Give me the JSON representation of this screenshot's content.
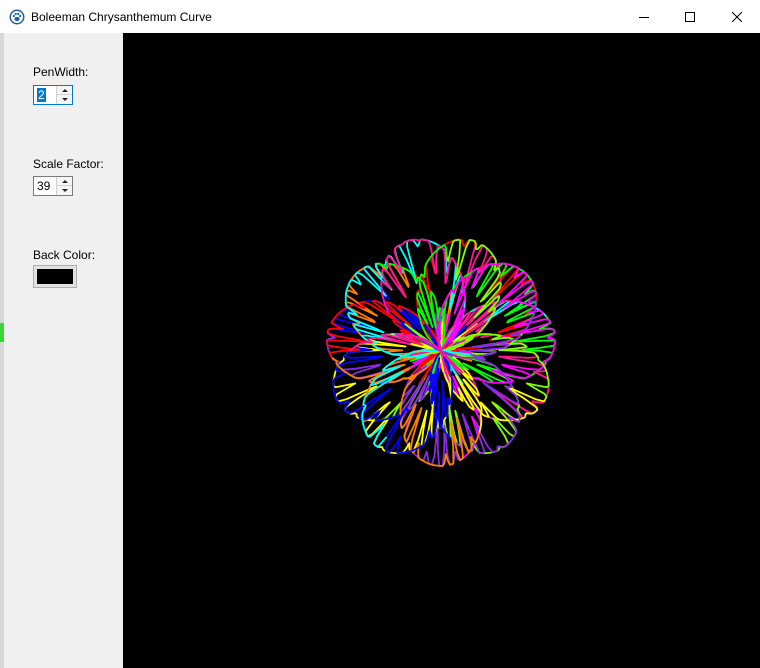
{
  "window": {
    "title": "Boleeman Chrysanthemum Curve",
    "app_icon": "paw-icon",
    "controls": [
      "minimize-icon",
      "maximize-icon",
      "close-icon"
    ]
  },
  "panel": {
    "pen_width": {
      "label": "PenWidth:",
      "value": "2"
    },
    "scale_factor": {
      "label": "Scale Factor:",
      "value": "39"
    },
    "back_color": {
      "label": "Back Color:",
      "color": "#000000"
    }
  },
  "canvas": {
    "background": "#000000",
    "palette": [
      "#ff0000",
      "#ff7f00",
      "#ffff00",
      "#7fff00",
      "#00ff00",
      "#00ffff",
      "#0000ff",
      "#8a2be2",
      "#ff00ff",
      "#ff1493"
    ]
  }
}
